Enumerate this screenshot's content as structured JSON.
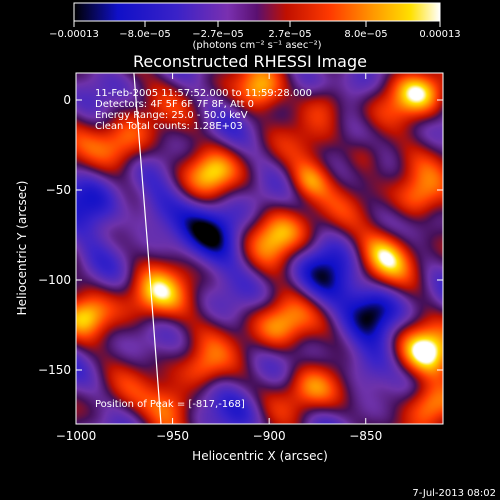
{
  "chart_data": {
    "type": "heatmap",
    "title": "Reconstructed RHESSI Image",
    "xlabel": "Heliocentric X (arcsec)",
    "ylabel": "Heliocentric Y (arcsec)",
    "xlim": [
      -1000,
      -810
    ],
    "ylim": [
      -180,
      15
    ],
    "xticks": [
      {
        "v": -1000,
        "label": "−1000"
      },
      {
        "v": -950,
        "label": "−950"
      },
      {
        "v": -900,
        "label": "−900"
      },
      {
        "v": -850,
        "label": "−850"
      }
    ],
    "yticks": [
      {
        "v": 0,
        "label": "0"
      },
      {
        "v": -50,
        "label": "−50"
      },
      {
        "v": -100,
        "label": "−100"
      },
      {
        "v": -150,
        "label": "−150"
      }
    ],
    "colorbar": {
      "min": -0.00013,
      "max": 0.00013,
      "tick_labels": [
        "−0.00013",
        "−8.0e−05",
        "−2.7e−05",
        "2.7e−05",
        "8.0e−05",
        "0.00013"
      ],
      "units_text": "(photons cm⁻² s⁻¹ asec⁻²)"
    },
    "annotations": [
      "11-Feb-2005 11:57:52.000 to 11:59:28.000",
      "Detectors: 4F 5F 6F 7F 8F, Att 0",
      "Energy Range: 25.0 - 50.0 keV",
      "Clean     Total counts: 1.28E+03"
    ],
    "peak_text": "Position of Peak = [-817,-168]",
    "timestamp": "7-Jul-2013 08:02",
    "limb": [
      [
        -970,
        15
      ],
      [
        -963,
        -80
      ],
      [
        -956,
        -180
      ]
    ],
    "hotspots": [
      {
        "x": -823,
        "y": 3,
        "amp": 1.0,
        "s": 10
      },
      {
        "x": -817,
        "y": -168,
        "amp": 1.0,
        "s": 9
      },
      {
        "x": -820,
        "y": -140,
        "amp": 0.9,
        "s": 10
      },
      {
        "x": -823,
        "y": -55,
        "amp": 0.7,
        "s": 9
      },
      {
        "x": -870,
        "y": 0,
        "amp": 0.75,
        "s": 9
      },
      {
        "x": -840,
        "y": -85,
        "amp": 0.8,
        "s": 10
      },
      {
        "x": -975,
        "y": -25,
        "amp": 0.75,
        "s": 10
      },
      {
        "x": -960,
        "y": -110,
        "amp": 0.8,
        "s": 11
      },
      {
        "x": -950,
        "y": -170,
        "amp": 0.75,
        "s": 9
      },
      {
        "x": -895,
        "y": -75,
        "amp": 0.8,
        "s": 11
      },
      {
        "x": -895,
        "y": -125,
        "amp": 0.7,
        "s": 10
      },
      {
        "x": -930,
        "y": -40,
        "amp": 0.65,
        "s": 9
      },
      {
        "x": -880,
        "y": -160,
        "amp": 0.7,
        "s": 10
      },
      {
        "x": -995,
        "y": -120,
        "amp": 0.6,
        "s": 8
      },
      {
        "x": -880,
        "y": -45,
        "amp": 0.7,
        "s": 8
      },
      {
        "x": -850,
        "y": -30,
        "amp": 0.55,
        "s": 8
      },
      {
        "x": -935,
        "y": -150,
        "amp": 0.55,
        "s": 8
      },
      {
        "x": -905,
        "y": 5,
        "amp": 0.65,
        "s": 8
      }
    ],
    "coldspots": [
      {
        "x": -925,
        "y": -75,
        "amp": 0.8,
        "s": 13
      },
      {
        "x": -870,
        "y": -100,
        "amp": 0.7,
        "s": 12
      },
      {
        "x": -845,
        "y": -115,
        "amp": 0.75,
        "s": 10
      },
      {
        "x": -990,
        "y": -60,
        "amp": 0.7,
        "s": 12
      },
      {
        "x": -915,
        "y": -175,
        "amp": 0.7,
        "s": 10
      },
      {
        "x": -960,
        "y": -60,
        "amp": 0.5,
        "s": 10
      },
      {
        "x": -850,
        "y": -150,
        "amp": 0.65,
        "s": 10
      },
      {
        "x": -855,
        "y": 5,
        "amp": 0.55,
        "s": 10
      }
    ]
  }
}
